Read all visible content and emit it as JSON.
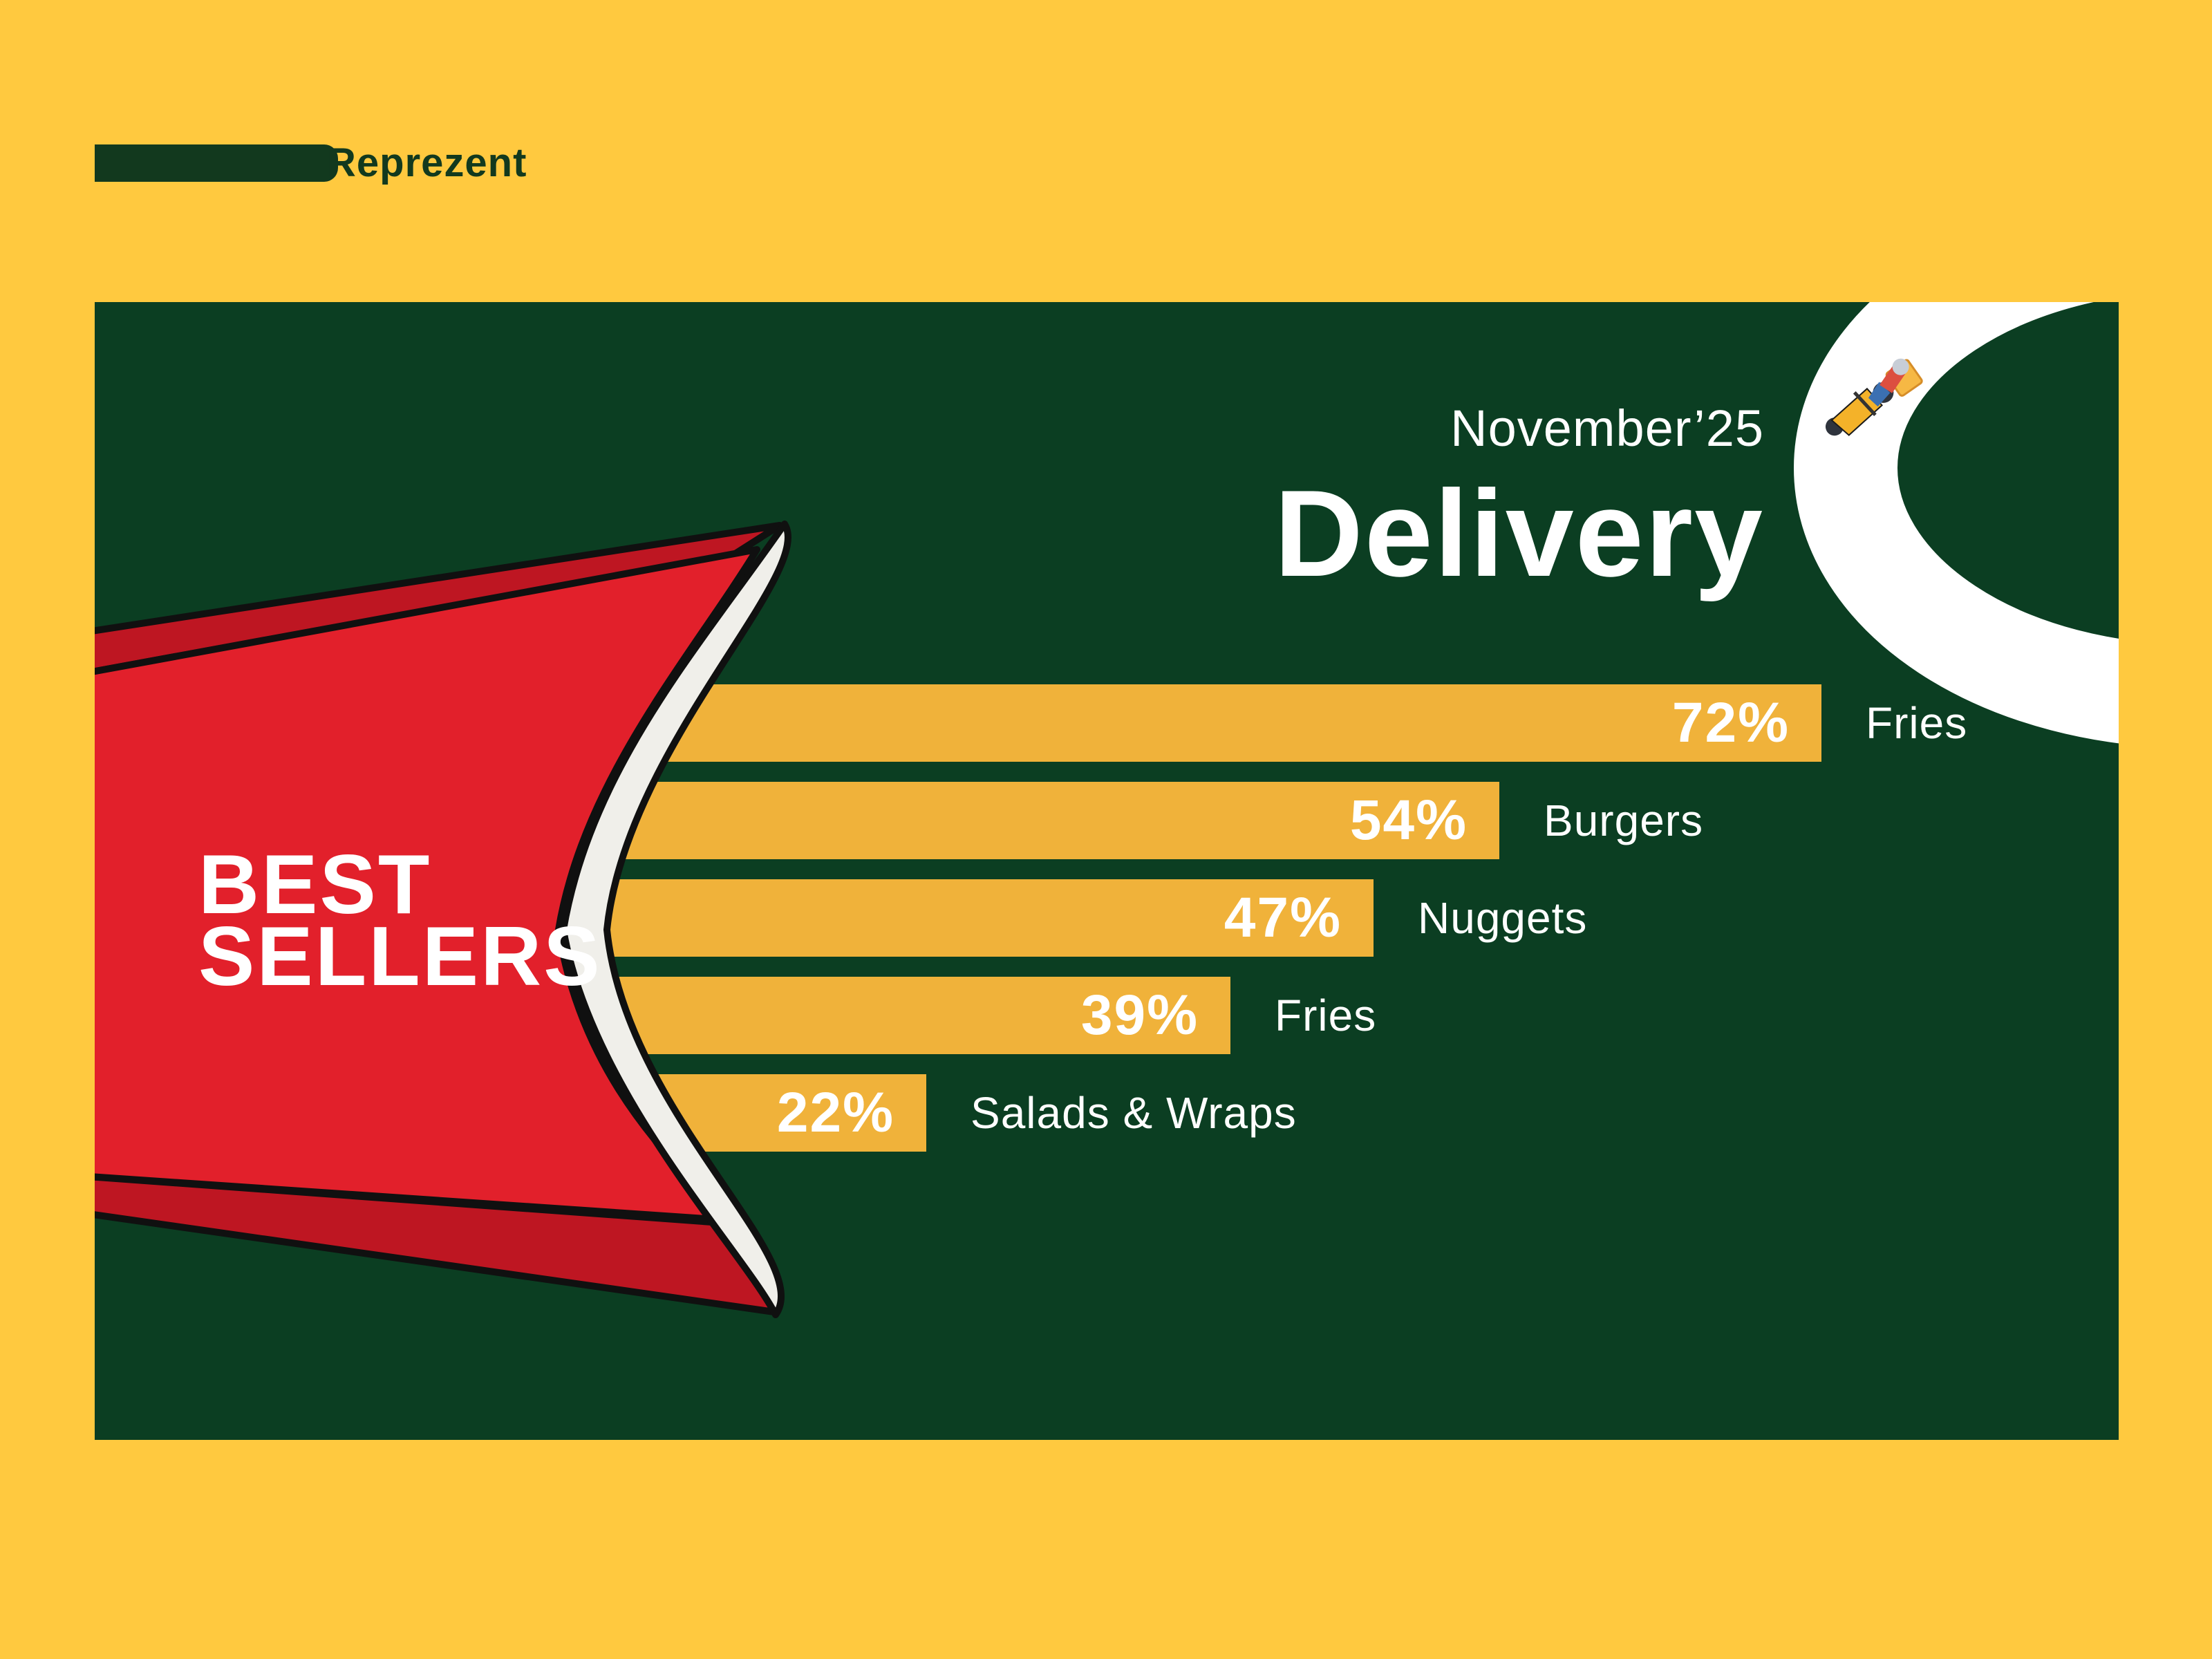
{
  "brand": {
    "name": "Reprezent"
  },
  "header": {
    "period": "November’25",
    "title": "Delivery"
  },
  "box": {
    "line1": "BEST",
    "line2": "SELLERS"
  },
  "chart_data": {
    "type": "bar",
    "orientation": "horizontal",
    "title": "BEST SELLERS",
    "subtitle": "Delivery November’25",
    "categories": [
      "Fries",
      "Burgers",
      "Nuggets",
      "Fries",
      "Salads & Wraps"
    ],
    "values": [
      72,
      54,
      47,
      39,
      22
    ],
    "value_labels": [
      "72%",
      "54%",
      "47%",
      "39%",
      "22%"
    ],
    "unit": "%",
    "xlim": [
      0,
      100
    ],
    "grid": false,
    "legend": false,
    "bar_color": "#F0B23A",
    "label_color": "#FFFFFF"
  },
  "colors": {
    "background_yellow": "#FFC93F",
    "panel_green": "#0B3E22",
    "bar_gold": "#F0B23A",
    "box_red": "#E2202B",
    "box_red_dark": "#BE1622",
    "box_lip_white": "#F0EFEA",
    "outline_black": "#101010",
    "road_white": "#FFFFFF",
    "logo_green": "#12391E",
    "text_white": "#FFFFFF"
  },
  "icons": {
    "road": "road-ring-icon",
    "scooter": "delivery-scooter-icon",
    "fries_box": "fries-box-illustration"
  }
}
